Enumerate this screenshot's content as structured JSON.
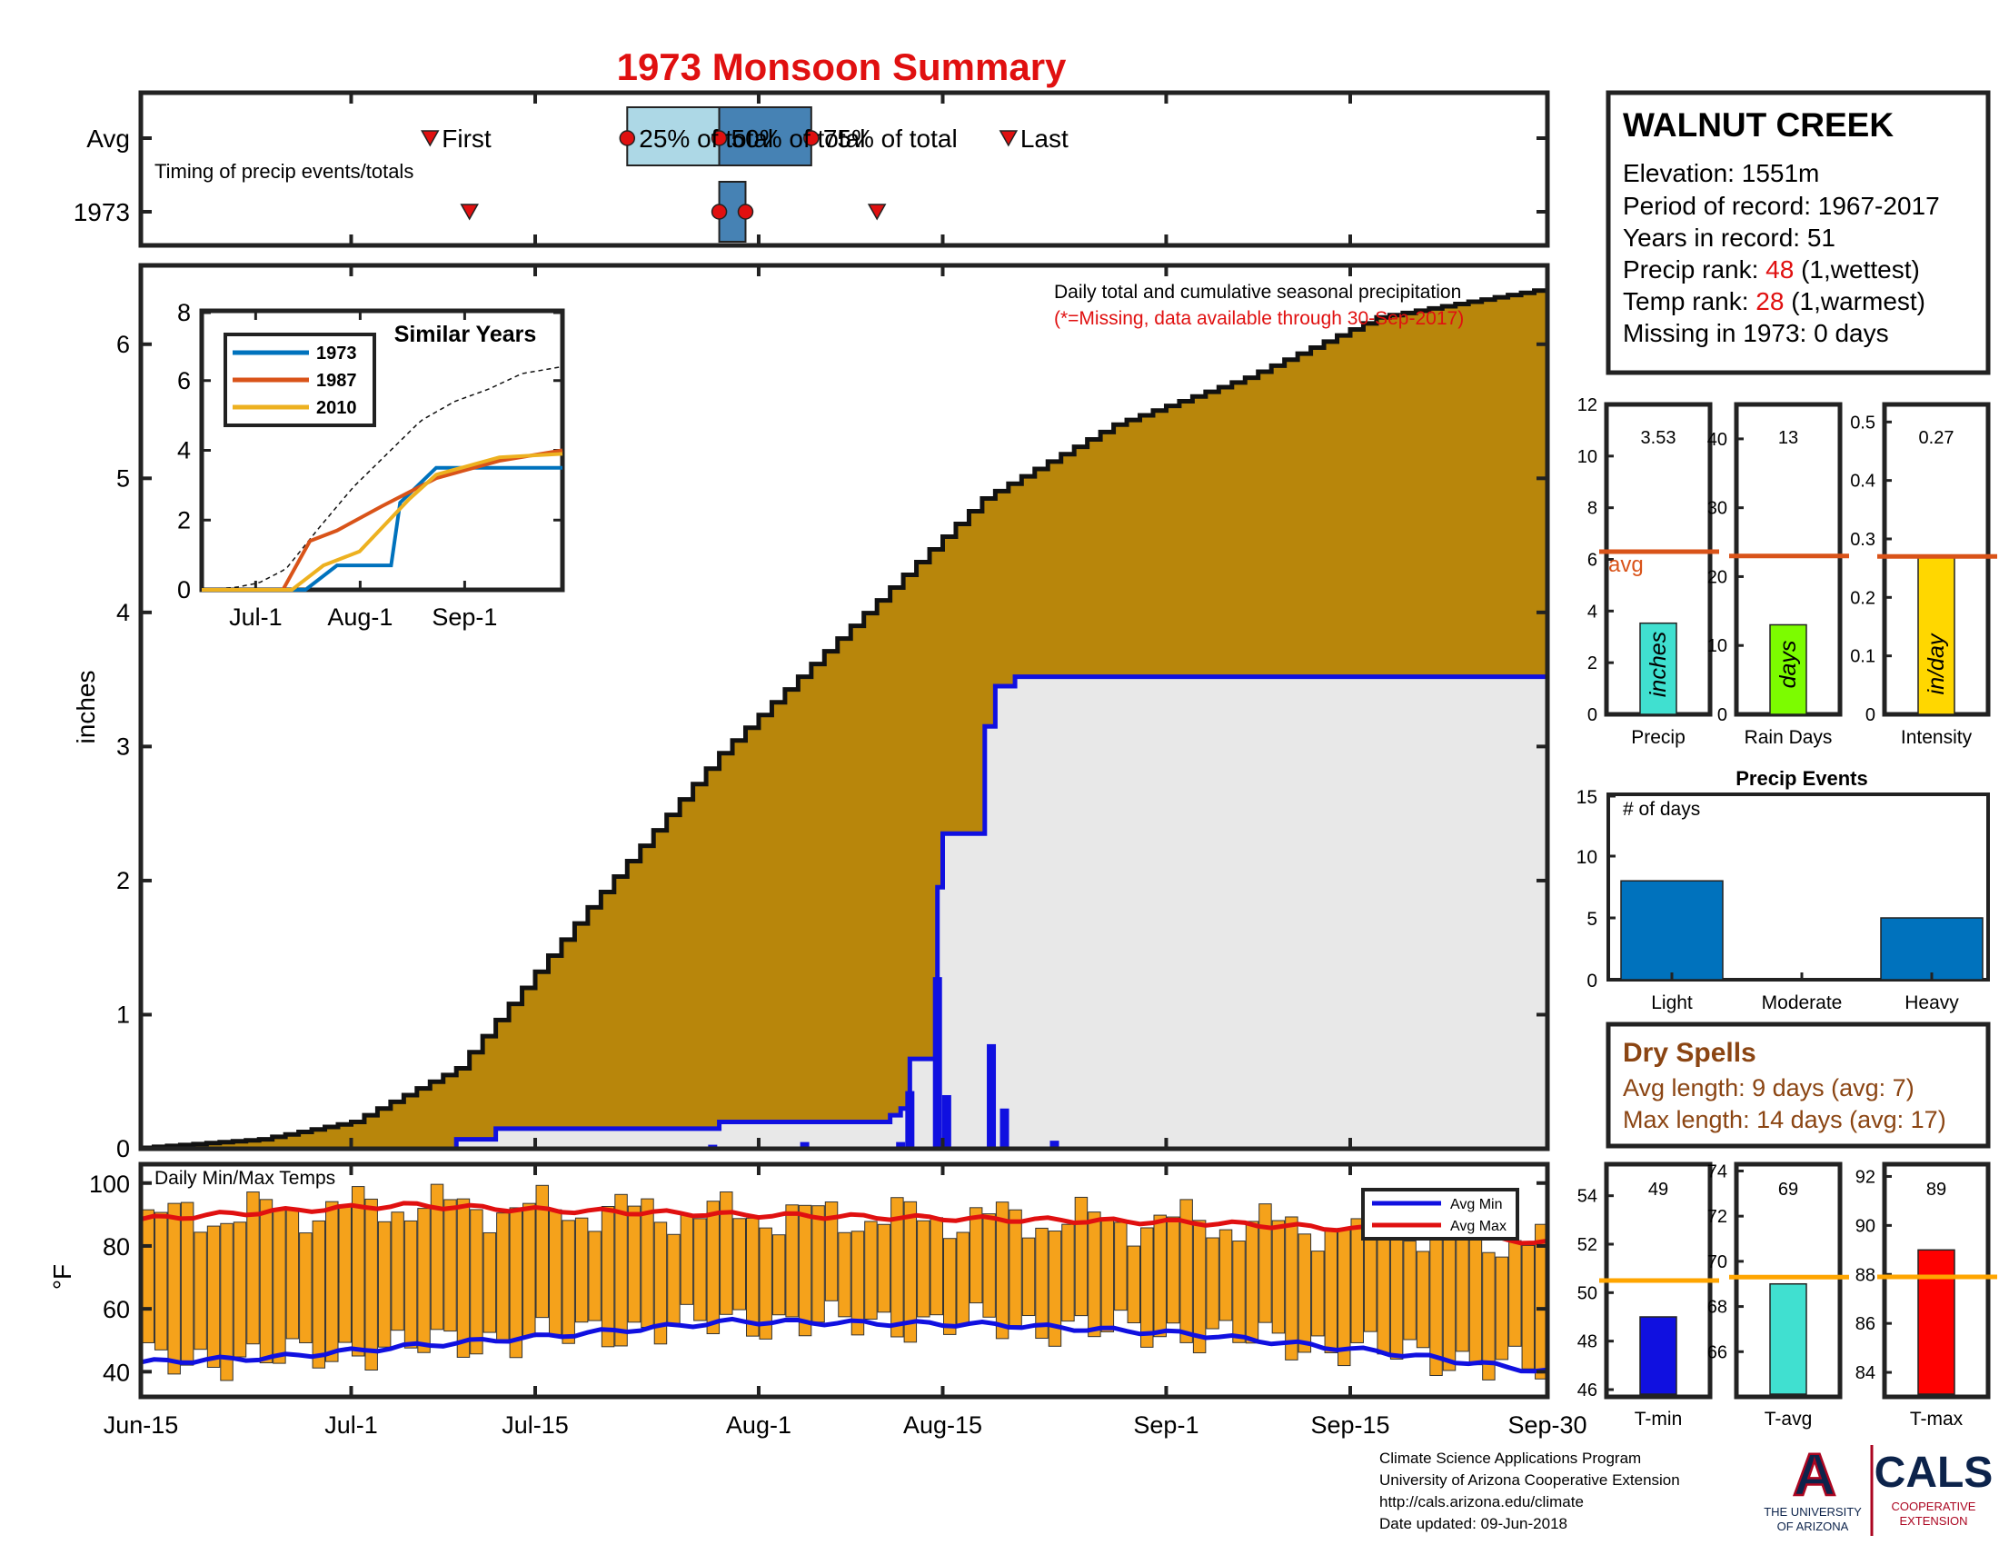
{
  "title": "1973 Monsoon Summary",
  "timing": {
    "note": "Timing of precip events/totals",
    "row_avg_label": "Avg",
    "row_year_label": "1973",
    "first_label": "First",
    "last_label": "Last",
    "pct25_label": "25% of total",
    "pct50_label": "50% of total",
    "pct75_label": "75% of total",
    "avg_days": {
      "first": 22,
      "pct25": 37,
      "pct50": 44,
      "pct75": 51,
      "last": 66
    },
    "year_days": {
      "first": 25,
      "pct25": 44,
      "pct50": 44,
      "pct75": 46,
      "last": 56
    }
  },
  "info": {
    "station": "WALNUT CREEK",
    "elevation": "Elevation: 1551m",
    "period": "Period of record: 1967-2017",
    "years": "Years in record: 51",
    "precip_rank_pre": "Precip rank: ",
    "precip_rank_val": "48",
    "precip_rank_post": " (1,wettest)",
    "temp_rank_pre": "Temp rank: ",
    "temp_rank_val": "28",
    "temp_rank_post": " (1,warmest)",
    "missing": "Missing in 1973: 0 days"
  },
  "main": {
    "note1": "Daily total and cumulative seasonal precipitation",
    "note2": "(*=Missing, data available through 30-Sep-2017)",
    "ylabel": "inches"
  },
  "inset": {
    "title": "Similar Years",
    "legend": [
      "1973",
      "1987",
      "2010"
    ],
    "x_ticks": [
      "Jul-1",
      "Aug-1",
      "Sep-1"
    ]
  },
  "temps": {
    "label": "Daily Min/Max Temps",
    "ylabel": "°F",
    "legend_min": "Avg Min",
    "legend_max": "Avg Max"
  },
  "x_ticks": [
    "Jun-15",
    "Jul-1",
    "Jul-15",
    "Aug-1",
    "Aug-15",
    "Sep-1",
    "Sep-15",
    "Sep-30"
  ],
  "bars": {
    "precip_value": "3.53",
    "precip_unit": "inches",
    "precip_label": "Precip",
    "avg_label": "avg",
    "raindays_value": "13",
    "raindays_unit": "days",
    "raindays_label": "Rain Days",
    "intensity_value": "0.27",
    "intensity_unit": "in/day",
    "intensity_label": "Intensity"
  },
  "events": {
    "title": "Precip Events",
    "ylabel": "# of days",
    "categories": [
      "Light",
      "Moderate",
      "Heavy"
    ]
  },
  "dry": {
    "title": "Dry Spells",
    "avg": "Avg length: 9 days (avg: 7)",
    "max": "Max length: 14 days (avg: 17)"
  },
  "tbars": {
    "tmin_value": "49",
    "tmin_label": "T-min",
    "tavg_value": "69",
    "tavg_label": "T-avg",
    "tmax_value": "89",
    "tmax_label": "T-max"
  },
  "footer": {
    "line1": "Climate Science Applications Program",
    "line2": "University of Arizona Cooperative Extension",
    "line3": "http://cals.arizona.edu/climate",
    "line4": " Date updated: 09-Jun-2018",
    "ua_line1": "THE UNIVERSITY",
    "ua_line2": "OF ARIZONA",
    "cals": "CALS",
    "cals_line1": "COOPERATIVE",
    "cals_line2": "EXTENSION",
    "ua_letter": "A"
  },
  "colors": {
    "title": "#e01010",
    "cumulative_avg": "#b8860b",
    "year_fill": "#e8e8e8",
    "year_line": "#1010e0",
    "temp_bar": "#f5a21b",
    "avg_line": "#d95319",
    "dry_text": "#8b4513",
    "rank_red": "#e01010"
  },
  "chart_data": [
    {
      "type": "area",
      "title": "Daily total and cumulative seasonal precipitation",
      "ylabel": "inches",
      "ylim": [
        0,
        6.5
      ],
      "x_axis": "days since Jun-15 (0 = Jun-15, 107 = Sep-30)",
      "series": [
        {
          "name": "average cumulative",
          "x": [
            0,
            10,
            17,
            25,
            35,
            45,
            55,
            65,
            75,
            85,
            95,
            107
          ],
          "y": [
            0,
            0.07,
            0.2,
            0.6,
            1.8,
            2.95,
            3.9,
            4.85,
            5.4,
            5.75,
            6.2,
            6.4
          ]
        },
        {
          "name": "1973 cumulative",
          "x": [
            0,
            23,
            24,
            26,
            27,
            30,
            43,
            44,
            57,
            57.8,
            58,
            58.5,
            60,
            60.6,
            61,
            62.8,
            64.2,
            65,
            66.5,
            107
          ],
          "y": [
            0,
            0,
            0.07,
            0.07,
            0.15,
            0.15,
            0.15,
            0.2,
            0.25,
            0.3,
            0.3,
            0.67,
            0.67,
            1.95,
            2.35,
            2.35,
            3.15,
            3.45,
            3.52,
            3.53
          ]
        }
      ],
      "daily_bars": [
        [
          58.5,
          0.43
        ],
        [
          57.8,
          0.05
        ],
        [
          60.6,
          1.28
        ],
        [
          61.3,
          0.4
        ],
        [
          64.7,
          0.78
        ],
        [
          65.7,
          0.3
        ],
        [
          69.5,
          0.06
        ],
        [
          43.5,
          0.03
        ],
        [
          50.5,
          0.05
        ]
      ]
    },
    {
      "type": "bar",
      "title": "Precip Events",
      "categories": [
        "Light",
        "Moderate",
        "Heavy"
      ],
      "values": [
        8,
        0,
        5
      ],
      "ylim": [
        0,
        15
      ]
    },
    {
      "type": "bar",
      "categories": [
        "Precip",
        "Rain Days",
        "Intensity"
      ],
      "values": [
        3.53,
        13,
        0.27
      ],
      "averages": [
        6.3,
        23,
        0.27
      ]
    },
    {
      "type": "bar",
      "categories": [
        "T-min",
        "T-avg",
        "T-max"
      ],
      "values": [
        49,
        69,
        89
      ],
      "averages": [
        50.5,
        69.3,
        87.9
      ]
    },
    {
      "type": "line",
      "title": "Similar Years",
      "series": [
        {
          "name": "1973",
          "x": [
            0,
            23,
            30,
            42,
            44,
            52,
            80
          ],
          "y": [
            0,
            0,
            0.7,
            0.7,
            2.5,
            3.5,
            3.5
          ]
        },
        {
          "name": "1987",
          "x": [
            0,
            18,
            24,
            30,
            40,
            52,
            66,
            80
          ],
          "y": [
            0,
            0,
            1.4,
            1.7,
            2.4,
            3.2,
            3.7,
            4.0
          ]
        },
        {
          "name": "2010",
          "x": [
            0,
            20,
            27,
            35,
            46,
            52,
            66,
            80
          ],
          "y": [
            0,
            0,
            0.7,
            1.1,
            2.6,
            3.3,
            3.8,
            3.9
          ]
        }
      ]
    },
    {
      "type": "bar",
      "title": "Daily Min/Max Temps",
      "ylim": [
        32,
        106
      ],
      "avg_min": {
        "x": [
          0,
          10,
          20,
          30,
          45,
          65,
          80,
          95,
          107
        ],
        "y": [
          43,
          44.5,
          48,
          51,
          56,
          55,
          52,
          46,
          40
        ]
      },
      "avg_max": {
        "x": [
          0,
          10,
          20,
          30,
          45,
          65,
          80,
          95,
          107
        ],
        "y": [
          88.5,
          91,
          93,
          91.5,
          90,
          88.5,
          87.5,
          85,
          81
        ]
      }
    }
  ]
}
